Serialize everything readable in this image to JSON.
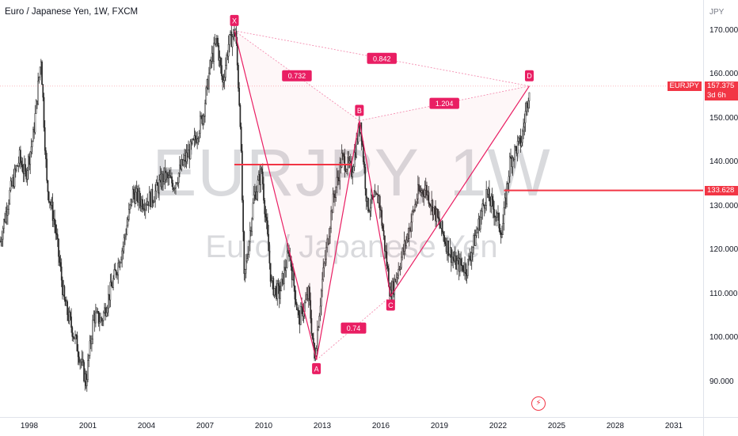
{
  "header": {
    "symbol_title": "Euro / Japanese Yen, 1W, FXCM"
  },
  "watermark": {
    "ticker": "EURJPY, 1W",
    "name": "Euro / Japanese Yen"
  },
  "price_scale": {
    "currency": "JPY",
    "ticks": [
      "170.000",
      "160.000",
      "150.000",
      "140.000",
      "130.000",
      "120.000",
      "110.000",
      "100.000",
      "90.000"
    ],
    "last_price_symbol": "EURJPY",
    "last_price": "157.375",
    "countdown": "3d 6h",
    "level_price": "133.628"
  },
  "time_scale": {
    "ticks": [
      "1998",
      "2001",
      "2004",
      "2007",
      "2010",
      "2013",
      "2016",
      "2019",
      "2022",
      "2025",
      "2028",
      "2031"
    ]
  },
  "pattern": {
    "points": [
      {
        "label": "X",
        "date": "2008.5",
        "price": 170.0
      },
      {
        "label": "A",
        "date": "2012.7",
        "price": 95.0
      },
      {
        "label": "B",
        "date": "2014.9",
        "price": 149.5
      },
      {
        "label": "C",
        "date": "2016.5",
        "price": 109.5
      },
      {
        "label": "D",
        "date": "2023.6",
        "price": 157.4
      }
    ],
    "ratios": {
      "xb": "0.732",
      "xd": "0.842",
      "bd": "1.204",
      "ac": "0.74"
    }
  },
  "levels": [
    {
      "name": "resistance-segment",
      "price": 139.5,
      "from": "2008.5",
      "to": "2014.5"
    },
    {
      "name": "support-line",
      "price": 133.628,
      "from": "2022.3",
      "to": "end"
    }
  ],
  "chart_data": {
    "type": "line",
    "title": "Euro / Japanese Yen, 1W, FXCM",
    "xlabel": "",
    "ylabel": "JPY",
    "xlim": [
      1996.5,
      2032.5
    ],
    "ylim": [
      82,
      177
    ],
    "grid": false,
    "series": [
      {
        "values": [
          [
            1996.5,
            122
          ],
          [
            1997.0,
            133
          ],
          [
            1997.5,
            141
          ],
          [
            1997.8,
            137
          ],
          [
            1998.2,
            146
          ],
          [
            1998.6,
            164
          ],
          [
            1998.9,
            135
          ],
          [
            1999.3,
            126
          ],
          [
            1999.8,
            108
          ],
          [
            2000.4,
            99
          ],
          [
            2000.9,
            90
          ],
          [
            2001.3,
            105
          ],
          [
            2001.7,
            104
          ],
          [
            2002.3,
            113
          ],
          [
            2002.8,
            121
          ],
          [
            2003.3,
            133
          ],
          [
            2003.8,
            131
          ],
          [
            2004.3,
            132
          ],
          [
            2004.9,
            137
          ],
          [
            2005.4,
            135
          ],
          [
            2005.9,
            140
          ],
          [
            2006.4,
            144
          ],
          [
            2006.9,
            151
          ],
          [
            2007.3,
            163
          ],
          [
            2007.6,
            168
          ],
          [
            2007.9,
            158
          ],
          [
            2008.2,
            167
          ],
          [
            2008.55,
            170
          ],
          [
            2008.8,
            150
          ],
          [
            2009.0,
            113
          ],
          [
            2009.5,
            132
          ],
          [
            2009.9,
            138
          ],
          [
            2010.4,
            112
          ],
          [
            2010.8,
            110
          ],
          [
            2011.3,
            120
          ],
          [
            2011.8,
            104
          ],
          [
            2012.3,
            110
          ],
          [
            2012.6,
            95
          ],
          [
            2013.0,
            113
          ],
          [
            2013.5,
            130
          ],
          [
            2014.0,
            141
          ],
          [
            2014.5,
            138
          ],
          [
            2014.95,
            149.5
          ],
          [
            2015.3,
            130
          ],
          [
            2015.9,
            132
          ],
          [
            2016.5,
            109.5
          ],
          [
            2016.9,
            116
          ],
          [
            2017.4,
            124
          ],
          [
            2017.9,
            133
          ],
          [
            2018.3,
            134
          ],
          [
            2018.9,
            127
          ],
          [
            2019.4,
            121
          ],
          [
            2019.8,
            117
          ],
          [
            2020.4,
            116
          ],
          [
            2020.9,
            124
          ],
          [
            2021.4,
            133
          ],
          [
            2021.9,
            128
          ],
          [
            2022.2,
            124
          ],
          [
            2022.6,
            140
          ],
          [
            2022.9,
            143
          ],
          [
            2023.2,
            145
          ],
          [
            2023.6,
            157.4
          ]
        ]
      }
    ]
  }
}
